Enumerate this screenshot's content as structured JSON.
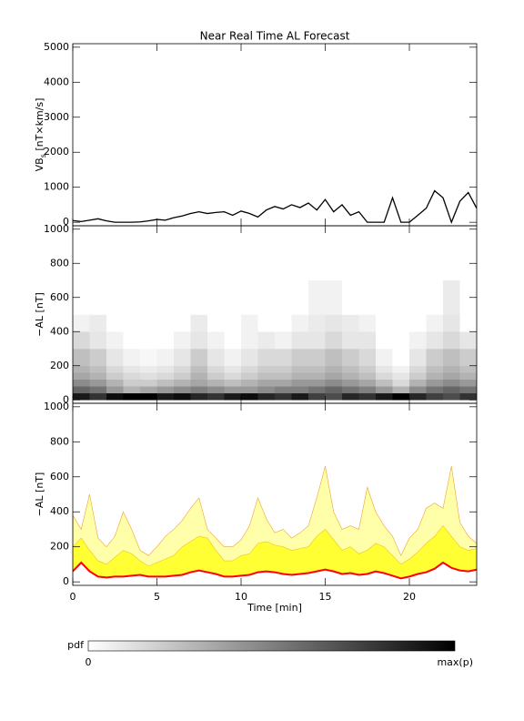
{
  "chart_data": [
    {
      "type": "line",
      "title": "Near Real Time AL Forecast",
      "ylabel": "VB",
      "ylabel_sub": "s",
      "ylabel_unit": " [nT×km/s]",
      "x": [
        0,
        0.5,
        1,
        1.5,
        2,
        2.5,
        3,
        3.5,
        4,
        4.5,
        5,
        5.5,
        6,
        6.5,
        7,
        7.5,
        8,
        8.5,
        9,
        9.5,
        10,
        10.5,
        11,
        11.5,
        12,
        12.5,
        13,
        13.5,
        14,
        14.5,
        15,
        15.5,
        16,
        16.5,
        17,
        17.5,
        18,
        18.5,
        19,
        19.5,
        20,
        20.5,
        21,
        21.5,
        22,
        22.5,
        23,
        23.5,
        24
      ],
      "values": [
        50,
        20,
        60,
        100,
        40,
        0,
        0,
        0,
        10,
        40,
        80,
        60,
        130,
        180,
        250,
        300,
        250,
        280,
        300,
        200,
        320,
        250,
        150,
        350,
        450,
        380,
        500,
        420,
        550,
        350,
        650,
        300,
        500,
        200,
        300,
        0,
        0,
        0,
        700,
        0,
        0,
        200,
        400,
        900,
        700,
        0,
        600,
        850,
        400
      ],
      "color": "#000000",
      "xlim": [
        0,
        24
      ],
      "xticks": [
        0,
        5,
        10,
        15,
        20
      ],
      "ylim": [
        -100,
        5100
      ],
      "yticks": [
        0,
        1000,
        2000,
        3000,
        4000,
        5000
      ]
    },
    {
      "type": "heatmap",
      "ylabel": "−AL [nT]",
      "xbins": [
        0,
        1,
        2,
        3,
        4,
        5,
        6,
        7,
        8,
        9,
        10,
        11,
        12,
        13,
        14,
        15,
        16,
        17,
        18,
        19,
        20,
        21,
        22,
        23,
        24
      ],
      "ybins": [
        0,
        40,
        80,
        120,
        160,
        200,
        300,
        400,
        500,
        700
      ],
      "z": [
        [
          0.9,
          0.8,
          0.95,
          1,
          1,
          0.9,
          0.95,
          0.85,
          0.8,
          0.9,
          0.95,
          0.85,
          0.8,
          0.9,
          0.75,
          0.7,
          0.85,
          0.8,
          0.9,
          1,
          0.85,
          0.75,
          0.7,
          0.8
        ],
        [
          0.6,
          0.55,
          0.4,
          0.3,
          0.35,
          0.4,
          0.45,
          0.5,
          0.45,
          0.4,
          0.4,
          0.45,
          0.5,
          0.5,
          0.55,
          0.6,
          0.55,
          0.5,
          0.4,
          0.3,
          0.45,
          0.55,
          0.6,
          0.55
        ],
        [
          0.45,
          0.4,
          0.3,
          0.2,
          0.2,
          0.25,
          0.3,
          0.35,
          0.3,
          0.25,
          0.3,
          0.35,
          0.35,
          0.4,
          0.4,
          0.45,
          0.4,
          0.35,
          0.25,
          0.15,
          0.3,
          0.4,
          0.45,
          0.4
        ],
        [
          0.35,
          0.3,
          0.2,
          0.15,
          0.12,
          0.15,
          0.2,
          0.3,
          0.2,
          0.15,
          0.2,
          0.25,
          0.25,
          0.3,
          0.3,
          0.35,
          0.3,
          0.25,
          0.15,
          0.1,
          0.2,
          0.3,
          0.35,
          0.3
        ],
        [
          0.3,
          0.25,
          0.15,
          0.1,
          0.08,
          0.1,
          0.15,
          0.25,
          0.15,
          0.1,
          0.15,
          0.2,
          0.2,
          0.25,
          0.25,
          0.3,
          0.25,
          0.2,
          0.1,
          0.05,
          0.15,
          0.25,
          0.3,
          0.25
        ],
        [
          0.25,
          0.2,
          0.1,
          0.05,
          0.03,
          0.05,
          0.1,
          0.2,
          0.1,
          0.05,
          0.1,
          0.15,
          0.15,
          0.2,
          0.2,
          0.25,
          0.2,
          0.15,
          0.05,
          0,
          0.1,
          0.2,
          0.25,
          0.2
        ],
        [
          0.15,
          0.1,
          0.05,
          0,
          0,
          0,
          0.05,
          0.1,
          0.05,
          0,
          0.05,
          0.08,
          0.05,
          0.1,
          0.1,
          0.15,
          0.1,
          0.1,
          0,
          0,
          0.05,
          0.1,
          0.15,
          0.1
        ],
        [
          0.05,
          0.08,
          0,
          0,
          0,
          0,
          0,
          0.08,
          0,
          0,
          0.05,
          0,
          0,
          0.05,
          0.08,
          0.1,
          0.08,
          0.05,
          0,
          0,
          0,
          0.05,
          0.1,
          0
        ],
        [
          0,
          0,
          0,
          0,
          0,
          0,
          0,
          0,
          0,
          0,
          0,
          0,
          0,
          0,
          0.05,
          0.05,
          0,
          0,
          0,
          0,
          0,
          0,
          0.08,
          0
        ]
      ],
      "xlim": [
        0,
        24
      ],
      "xticks": [
        0,
        5,
        10,
        15,
        20
      ],
      "ylim": [
        -20,
        1020
      ],
      "yticks": [
        0,
        200,
        400,
        600,
        800,
        1000
      ]
    },
    {
      "type": "band",
      "ylabel": "−AL [nT]",
      "xlabel": "Time [min]",
      "x": [
        0,
        0.5,
        1,
        1.5,
        2,
        2.5,
        3,
        3.5,
        4,
        4.5,
        5,
        5.5,
        6,
        6.5,
        7,
        7.5,
        8,
        8.5,
        9,
        9.5,
        10,
        10.5,
        11,
        11.5,
        12,
        12.5,
        13,
        13.5,
        14,
        14.5,
        15,
        15.5,
        16,
        16.5,
        17,
        17.5,
        18,
        18.5,
        19,
        19.5,
        20,
        20.5,
        21,
        21.5,
        22,
        22.5,
        23,
        23.5,
        24
      ],
      "series": [
        {
          "color": "#ffffaa",
          "edge": "#f0a030",
          "values": [
            380,
            300,
            500,
            250,
            200,
            260,
            400,
            300,
            180,
            150,
            200,
            260,
            300,
            350,
            420,
            480,
            300,
            250,
            200,
            200,
            240,
            320,
            480,
            360,
            280,
            300,
            250,
            280,
            320,
            480,
            660,
            400,
            300,
            320,
            300,
            540,
            400,
            320,
            260,
            150,
            250,
            300,
            420,
            450,
            420,
            660,
            340,
            260,
            220
          ]
        },
        {
          "color": "#ffff33",
          "edge": "#f0c020",
          "values": [
            200,
            250,
            180,
            120,
            100,
            140,
            180,
            160,
            120,
            90,
            110,
            130,
            150,
            200,
            230,
            260,
            250,
            180,
            120,
            120,
            150,
            160,
            220,
            230,
            210,
            200,
            180,
            190,
            200,
            260,
            300,
            240,
            180,
            200,
            160,
            180,
            220,
            200,
            150,
            100,
            130,
            170,
            220,
            260,
            320,
            260,
            200,
            180,
            190
          ]
        },
        {
          "color": "#ff0000",
          "values": [
            60,
            110,
            60,
            30,
            25,
            30,
            30,
            35,
            40,
            30,
            30,
            30,
            35,
            40,
            55,
            65,
            55,
            45,
            30,
            30,
            35,
            40,
            55,
            60,
            55,
            45,
            40,
            45,
            50,
            60,
            70,
            60,
            45,
            50,
            40,
            45,
            60,
            50,
            35,
            20,
            30,
            45,
            55,
            75,
            110,
            80,
            65,
            60,
            70
          ]
        }
      ],
      "xlim": [
        0,
        24
      ],
      "xticks": [
        0,
        5,
        10,
        15,
        20
      ],
      "ylim": [
        -20,
        1020
      ],
      "yticks": [
        0,
        200,
        400,
        600,
        800,
        1000
      ]
    }
  ],
  "colorbar": {
    "label": "pdf",
    "min_label": "0",
    "max_label": "max(p)"
  }
}
